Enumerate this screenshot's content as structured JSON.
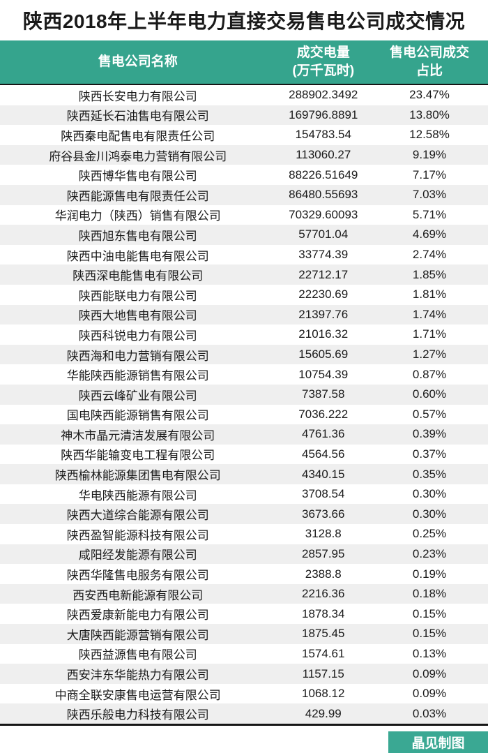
{
  "title": "陕西2018年上半年电力直接交易售电公司成交情况",
  "colors": {
    "header_teal": "#35a48d",
    "badge_teal": "#3aa893",
    "row_alt_gray": "#efefef",
    "rule_dark": "#161616",
    "text_dark": "#1a1a1a",
    "header_text": "#ffffff"
  },
  "table": {
    "header": [
      {
        "line1": "售电公司名称",
        "line2": ""
      },
      {
        "line1": "成交电量",
        "line2": "(万千瓦时)"
      },
      {
        "line1": "售电公司成交",
        "line2": "占比"
      }
    ]
  },
  "footer": {
    "credit": "晶见制图"
  },
  "chart_data": {
    "type": "table",
    "title": "陕西2018年上半年电力直接交易售电公司成交情况",
    "columns": [
      "售电公司名称",
      "成交电量(万千瓦时)",
      "售电公司成交占比"
    ],
    "rows": [
      [
        "陕西长安电力有限公司",
        "288902.3492",
        "23.47%"
      ],
      [
        "陕西延长石油售电有限公司",
        "169796.8891",
        "13.80%"
      ],
      [
        "陕西秦电配售电有限责任公司",
        "154783.54",
        "12.58%"
      ],
      [
        "府谷县金川鸿泰电力营销有限公司",
        "113060.27",
        "9.19%"
      ],
      [
        "陕西博华售电有限公司",
        "88226.51649",
        "7.17%"
      ],
      [
        "陕西能源售电有限责任公司",
        "86480.55693",
        "7.03%"
      ],
      [
        "华润电力（陕西）销售有限公司",
        "70329.60093",
        "5.71%"
      ],
      [
        "陕西旭东售电有限公司",
        "57701.04",
        "4.69%"
      ],
      [
        "陕西中油电能售电有限公司",
        "33774.39",
        "2.74%"
      ],
      [
        "陕西深电能售电有限公司",
        "22712.17",
        "1.85%"
      ],
      [
        "陕西能联电力有限公司",
        "22230.69",
        "1.81%"
      ],
      [
        "陕西大地售电有限公司",
        "21397.76",
        "1.74%"
      ],
      [
        "陕西科锐电力有限公司",
        "21016.32",
        "1.71%"
      ],
      [
        "陕西海和电力营销有限公司",
        "15605.69",
        "1.27%"
      ],
      [
        "华能陕西能源销售有限公司",
        "10754.39",
        "0.87%"
      ],
      [
        "陕西云峰矿业有限公司",
        "7387.58",
        "0.60%"
      ],
      [
        "国电陕西能源销售有限公司",
        "7036.222",
        "0.57%"
      ],
      [
        "神木市晶元清洁发展有限公司",
        "4761.36",
        "0.39%"
      ],
      [
        "陕西华能输变电工程有限公司",
        "4564.56",
        "0.37%"
      ],
      [
        "陕西榆林能源集团售电有限公司",
        "4340.15",
        "0.35%"
      ],
      [
        "华电陕西能源有限公司",
        "3708.54",
        "0.30%"
      ],
      [
        "陕西大道综合能源有限公司",
        "3673.66",
        "0.30%"
      ],
      [
        "陕西盈智能源科技有限公司",
        "3128.8",
        "0.25%"
      ],
      [
        "咸阳经发能源有限公司",
        "2857.95",
        "0.23%"
      ],
      [
        "陕西华隆售电服务有限公司",
        "2388.8",
        "0.19%"
      ],
      [
        "西安西电新能源有限公司",
        "2216.36",
        "0.18%"
      ],
      [
        "陕西爱康新能电力有限公司",
        "1878.34",
        "0.15%"
      ],
      [
        "大唐陕西能源营销有限公司",
        "1875.45",
        "0.15%"
      ],
      [
        "陕西益源售电有限公司",
        "1574.61",
        "0.13%"
      ],
      [
        "西安沣东华能热力有限公司",
        "1157.15",
        "0.09%"
      ],
      [
        "中商全联安康售电运营有限公司",
        "1068.12",
        "0.09%"
      ],
      [
        "陕西乐般电力科技有限公司",
        "429.99",
        "0.03%"
      ]
    ]
  }
}
